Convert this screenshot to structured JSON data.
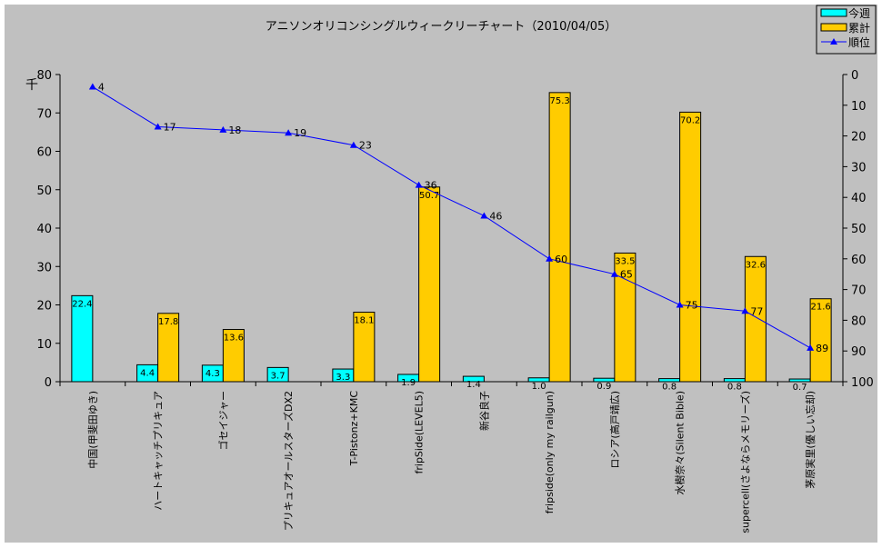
{
  "chart_data": {
    "type": "bar+line",
    "title": "アニソンオリコンシングルウィークリーチャート（2010/04/05）",
    "ylabel": "千",
    "ylim": [
      0,
      80
    ],
    "y_ticks": [
      0,
      10,
      20,
      30,
      40,
      50,
      60,
      70,
      80
    ],
    "y2lim": [
      0,
      100
    ],
    "y2_inverted": true,
    "y2_ticks": [
      0,
      10,
      20,
      30,
      40,
      50,
      60,
      70,
      80,
      90,
      100
    ],
    "legend_position": "top-right",
    "categories": [
      "中国(甲斐田ゆき)",
      "ハートキャッチプリキュア",
      "ゴセイジャー",
      "プリキュアオールスターズDX2",
      "T-Pistonz+KMC",
      "fripSide(LEVEL5)",
      "新谷良子",
      "fripside(only my railgun)",
      "ロシア(高戸靖広)",
      "水樹奈々(Silent Bible)",
      "supercell(さよならメモリーズ)",
      "茅原実里(優しい忘却)"
    ],
    "series": [
      {
        "name": "今週",
        "type": "bar",
        "color": "#00ffff",
        "values": [
          22.4,
          4.4,
          4.3,
          3.7,
          3.3,
          1.9,
          1.4,
          1.0,
          0.9,
          0.8,
          0.8,
          0.7
        ]
      },
      {
        "name": "累計",
        "type": "bar",
        "color": "#ffcc00",
        "values": [
          null,
          17.8,
          13.6,
          null,
          18.1,
          50.7,
          null,
          75.3,
          33.5,
          70.2,
          32.6,
          21.6
        ]
      },
      {
        "name": "順位",
        "type": "line",
        "axis": "right",
        "color": "#0000ff",
        "values": [
          4,
          17,
          18,
          19,
          23,
          36,
          46,
          60,
          65,
          75,
          77,
          89
        ]
      }
    ],
    "grid": false
  }
}
